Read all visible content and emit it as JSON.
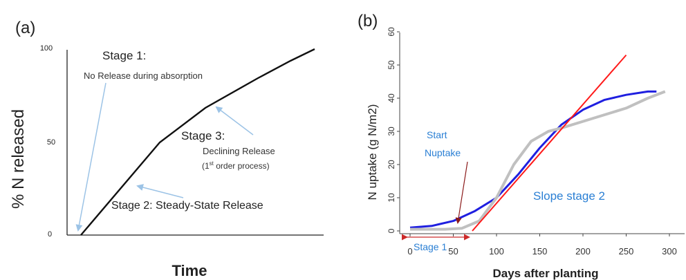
{
  "chart_data": [
    {
      "type": "line",
      "panel_label": "(a)",
      "xlabel": "Time",
      "ylabel": "% N released",
      "ylim": [
        0,
        100
      ],
      "yticks": [
        "0",
        "50",
        "100"
      ],
      "series": [
        {
          "points": [
            [
              0,
              0
            ],
            [
              1.1,
              50
            ],
            [
              1.75,
              69
            ],
            [
              2.5,
              85
            ],
            [
              3.2,
              95
            ],
            [
              3.6,
              100
            ]
          ]
        }
      ],
      "annotations": {
        "stage1_title": "Stage 1:",
        "stage1_text": "No Release during absorption",
        "stage2_text": "Stage 2:  Steady-State Release",
        "stage3_title": "Stage 3:",
        "stage3_line1": "Declining Release",
        "stage3_line2_pre": "(1",
        "stage3_line2_sup": "st",
        "stage3_line2_post": " order process)"
      },
      "colors": {
        "curve": "#000000",
        "arrow": "#9cc3e6"
      }
    },
    {
      "type": "line",
      "panel_label": "(b)",
      "xlabel": "Days after planting",
      "ylabel": "N uptake (g N/m2)",
      "xlim": [
        0,
        300
      ],
      "ylim": [
        0,
        60
      ],
      "xticks": [
        "0",
        "50",
        "100",
        "150",
        "200",
        "250",
        "300"
      ],
      "yticks": [
        "0",
        "10",
        "20",
        "30",
        "40",
        "50",
        "60"
      ],
      "series": [
        {
          "color": "#1f1fe0",
          "points": [
            [
              0,
              1
            ],
            [
              25,
              1.5
            ],
            [
              50,
              3
            ],
            [
              75,
              6
            ],
            [
              100,
              10
            ],
            [
              125,
              17
            ],
            [
              150,
              25
            ],
            [
              175,
              32
            ],
            [
              200,
              36.5
            ],
            [
              225,
              39.5
            ],
            [
              250,
              41
            ],
            [
              275,
              42
            ],
            [
              285,
              42
            ]
          ]
        },
        {
          "color": "#c0c0c0",
          "points": [
            [
              0,
              0.5
            ],
            [
              40,
              0.5
            ],
            [
              60,
              0.8
            ],
            [
              80,
              3
            ],
            [
              100,
              10
            ],
            [
              120,
              20
            ],
            [
              140,
              27
            ],
            [
              160,
              30
            ],
            [
              175,
              31
            ],
            [
              200,
              33
            ],
            [
              225,
              35
            ],
            [
              250,
              37
            ],
            [
              275,
              40
            ],
            [
              295,
              42
            ]
          ]
        },
        {
          "color": "#ff1a1a",
          "points": [
            [
              72,
              0
            ],
            [
              250,
              53
            ]
          ]
        }
      ],
      "annotations": {
        "start_line1": "Start",
        "start_line2": "Nuptake",
        "slope_label": "Slope stage 2",
        "stage1_label": "Stage 1"
      },
      "colors": {
        "label_blue": "#2a7fd4",
        "arrow_dark": "#8b1a1a",
        "stage_arrow": "#cc2a2a"
      }
    }
  ]
}
